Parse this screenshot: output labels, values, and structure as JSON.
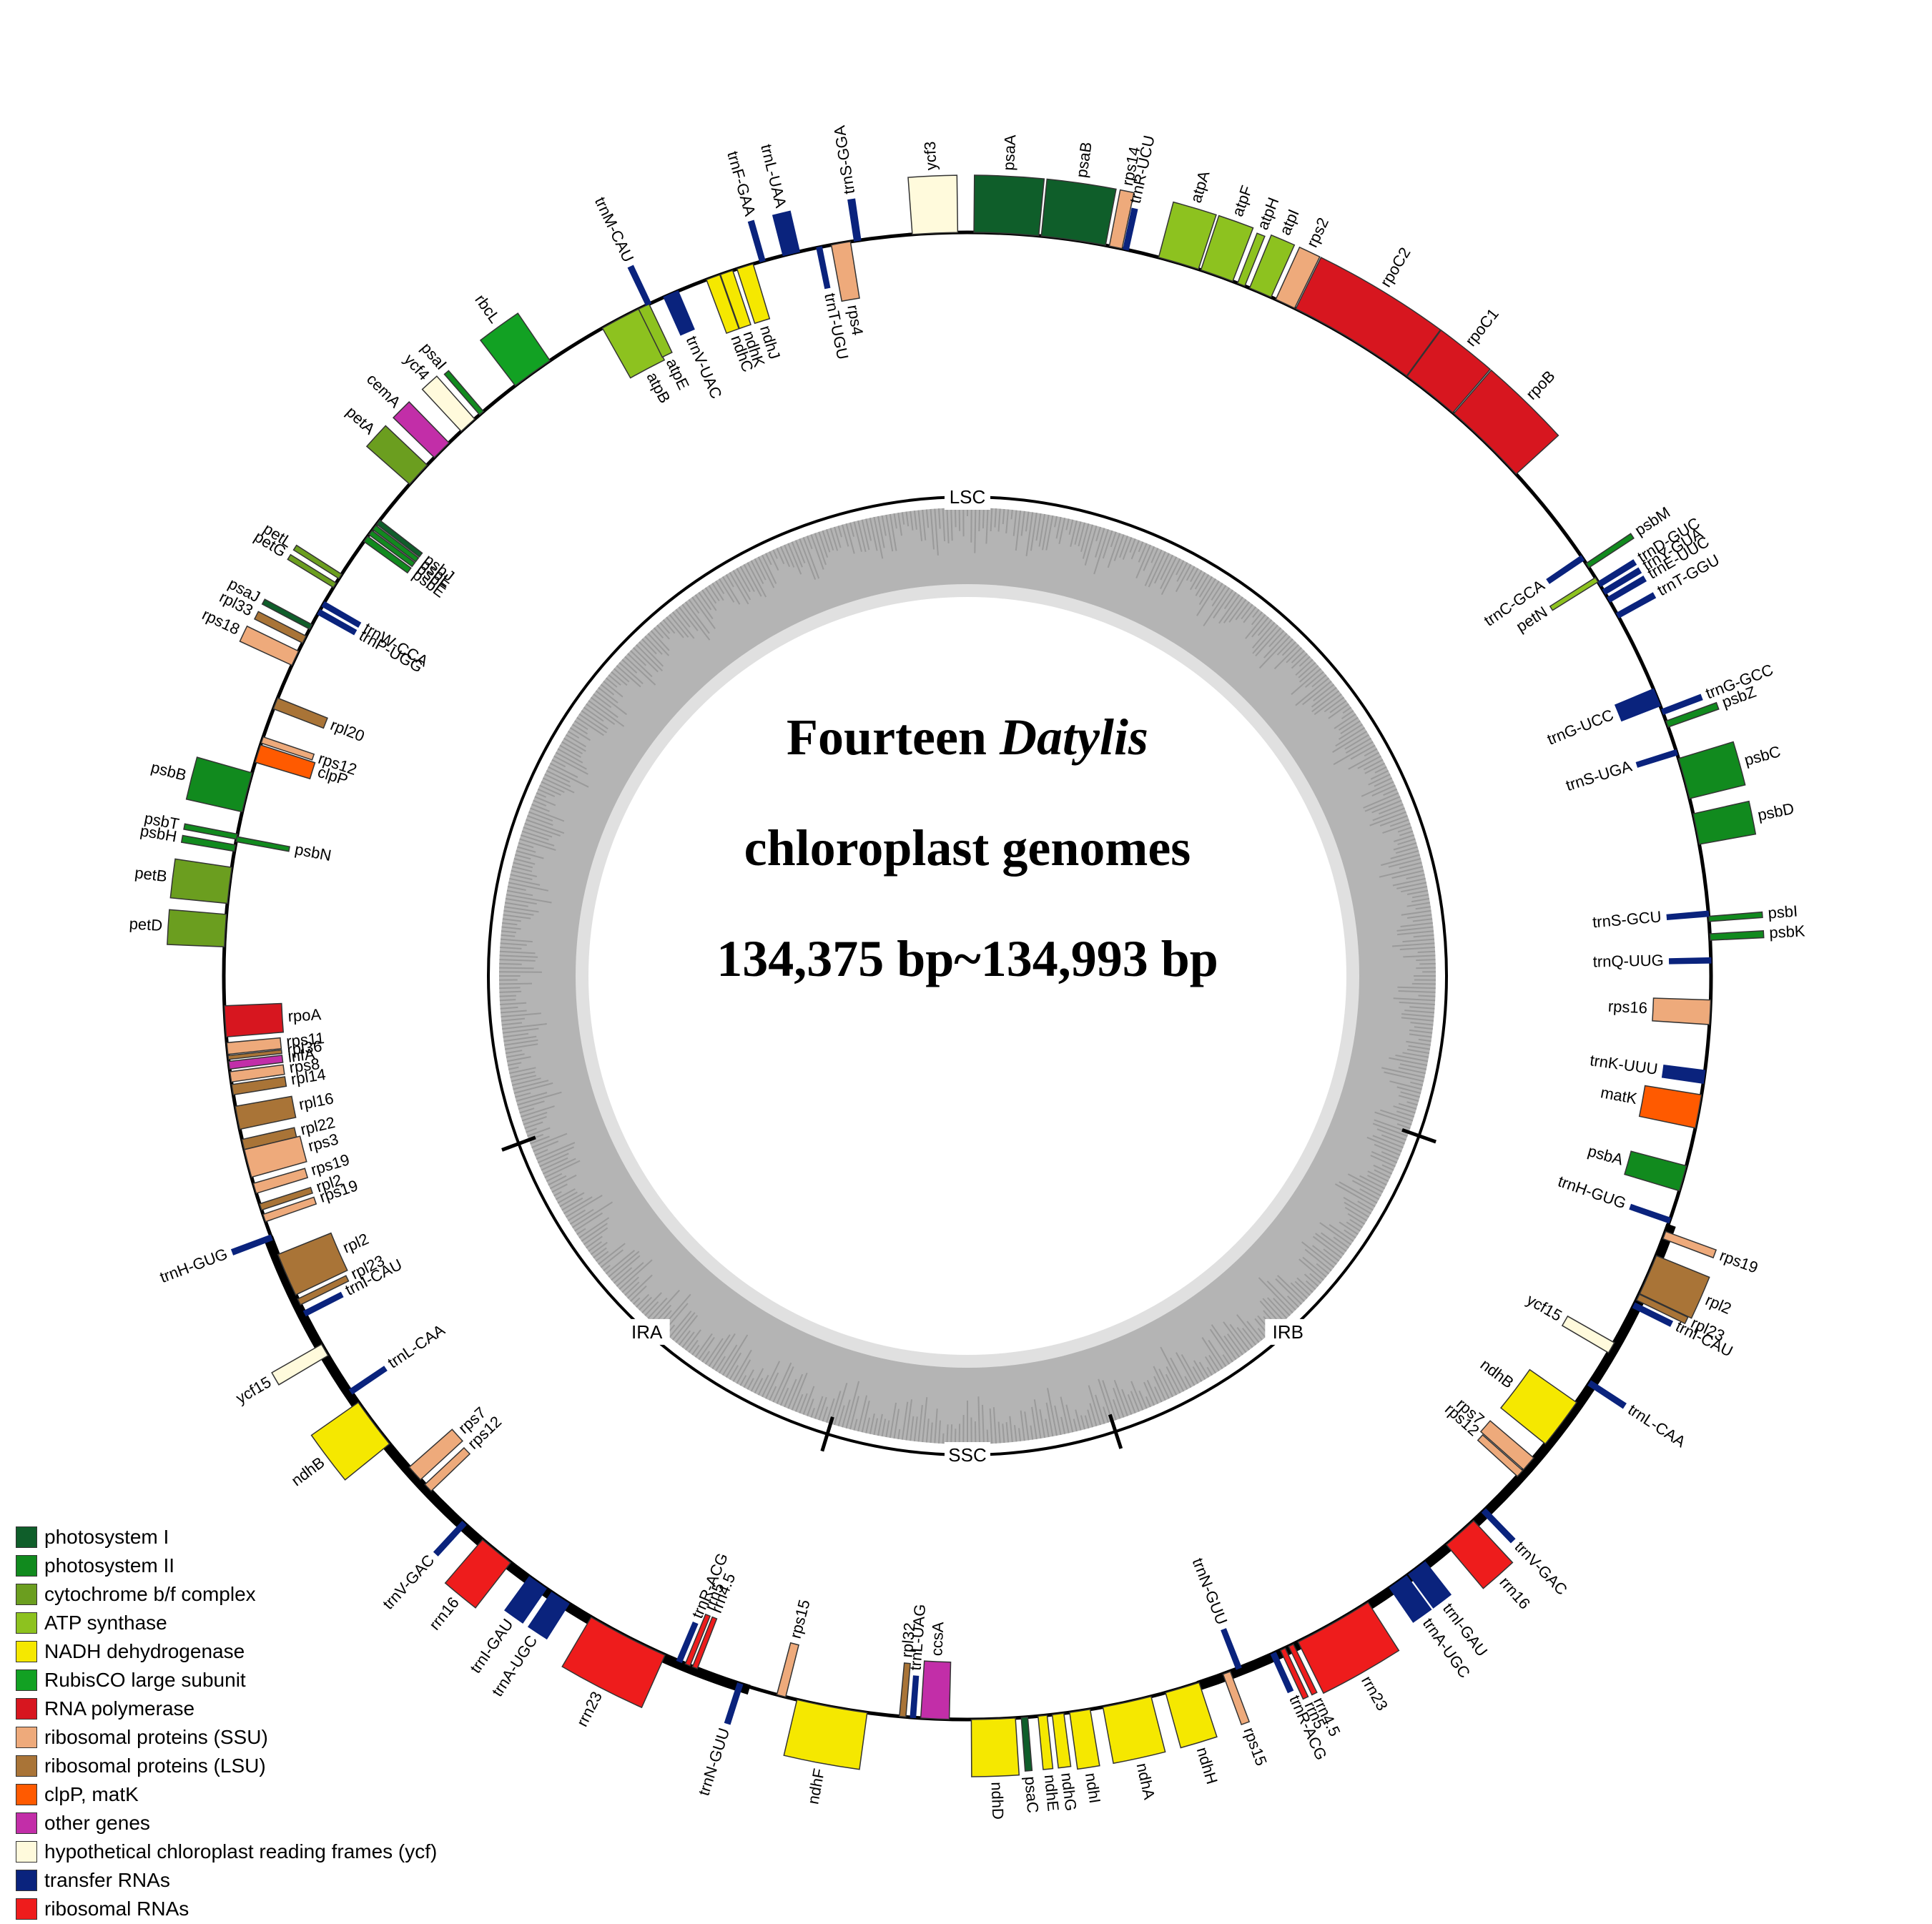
{
  "title": {
    "line1_prefix": "Fourteen ",
    "line1_italic": "Datylis",
    "line2": "chloroplast genomes",
    "line3": "134,375 bp~134,993 bp"
  },
  "regions": [
    "LSC",
    "IRA",
    "SSC",
    "IRB"
  ],
  "categories": {
    "ps1": {
      "label": "photosystem I",
      "color": "#0f5e2a"
    },
    "ps2": {
      "label": "photosystem II",
      "color": "#118a1e"
    },
    "cyt": {
      "label": "cytochrome b/f complex",
      "color": "#6b9e1f"
    },
    "atp": {
      "label": "ATP synthase",
      "color": "#8dc21f"
    },
    "ndh": {
      "label": "NADH dehydrogenase",
      "color": "#f5e800"
    },
    "rbc": {
      "label": "RubisCO large subunit",
      "color": "#12a123"
    },
    "rpo": {
      "label": "RNA polymerase",
      "color": "#d7161f"
    },
    "ssu": {
      "label": "ribosomal proteins (SSU)",
      "color": "#eeaa7b"
    },
    "lsu": {
      "label": "ribosomal proteins (LSU)",
      "color": "#a97437"
    },
    "clp": {
      "label": "clpP, matK",
      "color": "#ff5a00"
    },
    "oth": {
      "label": "other genes",
      "color": "#c22ea8"
    },
    "ycf": {
      "label": "hypothetical chloroplast reading frames (ycf)",
      "color": "#fffadc"
    },
    "trn": {
      "label": "transfer RNAs",
      "color": "#0a237d"
    },
    "rrn": {
      "label": "ribosomal RNAs",
      "color": "#ee1c1c"
    }
  },
  "legend_order": [
    "ps1",
    "ps2",
    "cyt",
    "atp",
    "ndh",
    "rbc",
    "rpo",
    "ssu",
    "lsu",
    "clp",
    "oth",
    "ycf",
    "trn",
    "rrn"
  ],
  "genes": [
    {
      "name": "trnS-GGA",
      "cat": "trn",
      "a": -8.5,
      "w": 0.5,
      "side": "out"
    },
    {
      "name": "ycf3",
      "cat": "ycf",
      "a": -2.5,
      "w": 3.5,
      "side": "out"
    },
    {
      "name": "psaA",
      "cat": "ps1",
      "a": 3.0,
      "w": 5.0,
      "side": "out"
    },
    {
      "name": "psaB",
      "cat": "ps1",
      "a": 8.2,
      "w": 5.0,
      "side": "out"
    },
    {
      "name": "rps14",
      "cat": "ssu",
      "a": 11.5,
      "w": 1.0,
      "side": "out"
    },
    {
      "name": "trnR-UCU",
      "cat": "trn",
      "a": 12.3,
      "w": 0.4,
      "side": "out"
    },
    {
      "name": "atpA",
      "cat": "atp",
      "a": 16.5,
      "w": 3.2,
      "side": "out"
    },
    {
      "name": "atpF",
      "cat": "atp",
      "a": 19.6,
      "w": 2.6,
      "side": "out"
    },
    {
      "name": "atpH",
      "cat": "atp",
      "a": 21.6,
      "w": 0.6,
      "side": "out"
    },
    {
      "name": "atpI",
      "cat": "atp",
      "a": 23.2,
      "w": 1.8,
      "side": "out"
    },
    {
      "name": "rps2",
      "cat": "ssu",
      "a": 25.3,
      "w": 1.6,
      "side": "out"
    },
    {
      "name": "rpoC2",
      "cat": "rpo",
      "a": 31.2,
      "w": 10.0,
      "side": "out"
    },
    {
      "name": "rpoC1",
      "cat": "rpo",
      "a": 38.5,
      "w": 4.5,
      "side": "out"
    },
    {
      "name": "rpoB",
      "cat": "rpo",
      "a": 44.2,
      "w": 6.7,
      "side": "out"
    },
    {
      "name": "psbM",
      "cat": "ps2",
      "a": 56.5,
      "w": 0.4,
      "side": "out"
    },
    {
      "name": "trnD-GUC",
      "cat": "trn",
      "a": 58.2,
      "w": 0.4,
      "side": "out"
    },
    {
      "name": "trnY-GUA",
      "cat": "trn",
      "a": 58.9,
      "w": 0.4,
      "side": "out"
    },
    {
      "name": "trnE-UUC",
      "cat": "trn",
      "a": 59.6,
      "w": 0.4,
      "side": "out"
    },
    {
      "name": "trnT-GGU",
      "cat": "trn",
      "a": 61.0,
      "w": 0.4,
      "side": "out"
    },
    {
      "name": "trnC-GCA",
      "cat": "trn",
      "a": 55.8,
      "w": 0.4,
      "side": "in"
    },
    {
      "name": "petN",
      "cat": "atp",
      "a": 57.8,
      "w": 0.4,
      "side": "in"
    },
    {
      "name": "trnG-GCC",
      "cat": "trn",
      "a": 69.2,
      "w": 0.4,
      "side": "out"
    },
    {
      "name": "psbZ",
      "cat": "ps2",
      "a": 70.2,
      "w": 0.5,
      "side": "out"
    },
    {
      "name": "psbC",
      "cat": "ps2",
      "a": 74.6,
      "w": 3.2,
      "side": "out"
    },
    {
      "name": "psbD",
      "cat": "ps2",
      "a": 78.6,
      "w": 2.4,
      "side": "out"
    },
    {
      "name": "psbI",
      "cat": "ps2",
      "a": 85.6,
      "w": 0.4,
      "side": "out"
    },
    {
      "name": "psbK",
      "cat": "ps2",
      "a": 87.0,
      "w": 0.5,
      "side": "out"
    },
    {
      "name": "trnG-UCC",
      "cat": "trn",
      "a": 68.0,
      "w": 1.4,
      "side": "in"
    },
    {
      "name": "trnS-UGA",
      "cat": "trn",
      "a": 72.5,
      "w": 0.4,
      "side": "in"
    },
    {
      "name": "trnS-GCU",
      "cat": "trn",
      "a": 85.2,
      "w": 0.4,
      "side": "in"
    },
    {
      "name": "trnQ-UUG",
      "cat": "trn",
      "a": 88.8,
      "w": 0.4,
      "side": "in"
    },
    {
      "name": "rps16",
      "cat": "ssu",
      "a": 92.8,
      "w": 1.9,
      "side": "in"
    },
    {
      "name": "trnK-UUU",
      "cat": "trn",
      "a": 97.8,
      "w": 1.0,
      "side": "in"
    },
    {
      "name": "matK",
      "cat": "clp",
      "a": 100.5,
      "w": 2.6,
      "side": "in"
    },
    {
      "name": "psbA",
      "cat": "ps2",
      "a": 105.8,
      "w": 2.0,
      "side": "in"
    },
    {
      "name": "trnH-GUG",
      "cat": "trn",
      "a": 109.2,
      "w": 0.4,
      "side": "in"
    },
    {
      "name": "rps19",
      "cat": "ssu",
      "a": 110.4,
      "w": 0.6,
      "side": "out"
    },
    {
      "name": "rpl2",
      "cat": "lsu",
      "a": 113.7,
      "w": 3.2,
      "side": "out"
    },
    {
      "name": "rpl23",
      "cat": "lsu",
      "a": 115.6,
      "w": 0.5,
      "side": "out"
    },
    {
      "name": "trnI-CAU",
      "cat": "trn",
      "a": 116.3,
      "w": 0.4,
      "side": "out"
    },
    {
      "name": "ycf15",
      "cat": "ycf",
      "a": 120.0,
      "w": 0.9,
      "side": "in"
    },
    {
      "name": "trnL-CAA",
      "cat": "trn",
      "a": 123.2,
      "w": 0.4,
      "side": "out"
    },
    {
      "name": "ndhB",
      "cat": "ndh",
      "a": 127.0,
      "w": 4.0,
      "side": "in"
    },
    {
      "name": "rps7",
      "cat": "ssu",
      "a": 131.0,
      "w": 1.2,
      "side": "in"
    },
    {
      "name": "rps12",
      "cat": "ssu",
      "a": 132.0,
      "w": 0.6,
      "side": "in"
    },
    {
      "name": "trnV-GAC",
      "cat": "trn",
      "a": 136.0,
      "w": 0.4,
      "side": "out"
    },
    {
      "name": "rrn16",
      "cat": "rrn",
      "a": 138.5,
      "w": 2.8,
      "side": "out"
    },
    {
      "name": "trnI-GAU",
      "cat": "trn",
      "a": 142.8,
      "w": 1.6,
      "side": "out"
    },
    {
      "name": "trnA-UGC",
      "cat": "trn",
      "a": 144.6,
      "w": 1.6,
      "side": "out"
    },
    {
      "name": "rrn23",
      "cat": "rrn",
      "a": 150.5,
      "w": 6.2,
      "side": "out"
    },
    {
      "name": "rrn4.5",
      "cat": "rrn",
      "a": 154.2,
      "w": 0.4,
      "side": "out"
    },
    {
      "name": "rrn5",
      "cat": "rrn",
      "a": 154.9,
      "w": 0.4,
      "side": "out"
    },
    {
      "name": "trnR-ACG",
      "cat": "trn",
      "a": 155.7,
      "w": 0.4,
      "side": "out"
    },
    {
      "name": "trnN-GUU",
      "cat": "trn",
      "a": 158.6,
      "w": 0.4,
      "side": "in"
    },
    {
      "name": "rps15",
      "cat": "ssu",
      "a": 159.6,
      "w": 0.6,
      "side": "out"
    },
    {
      "name": "ndhH",
      "cat": "ndh",
      "a": 163.2,
      "w": 2.7,
      "side": "out"
    },
    {
      "name": "ndhA",
      "cat": "ndh",
      "a": 167.6,
      "w": 3.8,
      "side": "out"
    },
    {
      "name": "ndhI",
      "cat": "ndh",
      "a": 171.3,
      "w": 1.6,
      "side": "out"
    },
    {
      "name": "ndhG",
      "cat": "ndh",
      "a": 173.0,
      "w": 0.9,
      "side": "out"
    },
    {
      "name": "ndhE",
      "cat": "ndh",
      "a": 174.2,
      "w": 0.7,
      "side": "out"
    },
    {
      "name": "psaC",
      "cat": "ps1",
      "a": 175.6,
      "w": 0.5,
      "side": "out"
    },
    {
      "name": "ndhD",
      "cat": "ndh",
      "a": 178.0,
      "w": 3.4,
      "side": "out"
    },
    {
      "name": "ccsA",
      "cat": "oth",
      "a": 182.5,
      "w": 2.2,
      "side": "in"
    },
    {
      "name": "trnL-UAG",
      "cat": "trn",
      "a": 184.2,
      "w": 0.4,
      "side": "in"
    },
    {
      "name": "rpl32",
      "cat": "lsu",
      "a": 185.0,
      "w": 0.5,
      "side": "in"
    },
    {
      "name": "ndhF",
      "cat": "ndh",
      "a": 190.5,
      "w": 5.5,
      "side": "out"
    },
    {
      "name": "rps15",
      "cat": "ssu",
      "a": 194.5,
      "w": 0.7,
      "side": "in"
    },
    {
      "name": "trnN-GUU",
      "cat": "trn",
      "a": 197.8,
      "w": 0.4,
      "side": "out"
    },
    {
      "name": "rrn4.5",
      "cat": "rrn",
      "a": 201.5,
      "w": 0.4,
      "side": "in"
    },
    {
      "name": "rrn5",
      "cat": "rrn",
      "a": 202.1,
      "w": 0.4,
      "side": "in"
    },
    {
      "name": "trnR-ACG",
      "cat": "trn",
      "a": 202.8,
      "w": 0.4,
      "side": "in"
    },
    {
      "name": "rrn23",
      "cat": "rrn",
      "a": 207.2,
      "w": 6.4,
      "side": "out"
    },
    {
      "name": "trnA-UGC",
      "cat": "trn",
      "a": 213.2,
      "w": 1.6,
      "side": "out"
    },
    {
      "name": "trnI-GAU",
      "cat": "trn",
      "a": 215.3,
      "w": 1.6,
      "side": "out"
    },
    {
      "name": "rrn16",
      "cat": "rrn",
      "a": 219.3,
      "w": 2.8,
      "side": "out"
    },
    {
      "name": "trnV-GAC",
      "cat": "trn",
      "a": 222.6,
      "w": 0.4,
      "side": "out"
    },
    {
      "name": "rps12",
      "cat": "ssu",
      "a": 226.5,
      "w": 0.7,
      "side": "in"
    },
    {
      "name": "rps7",
      "cat": "ssu",
      "a": 228.0,
      "w": 1.3,
      "side": "in"
    },
    {
      "name": "ndhB",
      "cat": "ndh",
      "a": 233.0,
      "w": 4.0,
      "side": "out"
    },
    {
      "name": "trnL-CAA",
      "cat": "trn",
      "a": 236.0,
      "w": 0.4,
      "side": "in"
    },
    {
      "name": "ycf15",
      "cat": "ycf",
      "a": 239.8,
      "w": 1.0,
      "side": "out"
    },
    {
      "name": "trnI-CAU",
      "cat": "trn",
      "a": 243.0,
      "w": 0.4,
      "side": "in"
    },
    {
      "name": "rpl23",
      "cat": "lsu",
      "a": 244.0,
      "w": 0.5,
      "side": "in"
    },
    {
      "name": "rpl2",
      "cat": "lsu",
      "a": 246.3,
      "w": 3.4,
      "side": "in"
    },
    {
      "name": "trnH-GUG",
      "cat": "trn",
      "a": 249.4,
      "w": 0.4,
      "side": "out"
    },
    {
      "name": "rps19",
      "cat": "ssu",
      "a": 251.0,
      "w": 0.6,
      "side": "in"
    },
    {
      "name": "rpl2",
      "cat": "lsu",
      "a": 251.9,
      "w": 0.5,
      "side": "in"
    },
    {
      "name": "rps3",
      "cat": "ssu",
      "a": 255.4,
      "w": 2.2,
      "side": "in"
    },
    {
      "name": "rpl22",
      "cat": "lsu",
      "a": 256.9,
      "w": 0.8,
      "side": "in"
    },
    {
      "name": "rps19",
      "cat": "ssu",
      "a": 253.4,
      "w": 0.8,
      "side": "in"
    },
    {
      "name": "rpl16",
      "cat": "lsu",
      "a": 259.0,
      "w": 1.8,
      "side": "in"
    },
    {
      "name": "rpl14",
      "cat": "lsu",
      "a": 261.2,
      "w": 0.8,
      "side": "in"
    },
    {
      "name": "rps8",
      "cat": "ssu",
      "a": 262.2,
      "w": 0.8,
      "side": "in"
    },
    {
      "name": "infA",
      "cat": "oth",
      "a": 263.1,
      "w": 0.6,
      "side": "in"
    },
    {
      "name": "rpl36",
      "cat": "lsu",
      "a": 263.7,
      "w": 0.3,
      "side": "in"
    },
    {
      "name": "rps11",
      "cat": "ssu",
      "a": 264.4,
      "w": 0.9,
      "side": "in"
    },
    {
      "name": "rpoA",
      "cat": "rpo",
      "a": 266.5,
      "w": 2.4,
      "side": "in"
    },
    {
      "name": "petD",
      "cat": "cyt",
      "a": 273.5,
      "w": 2.5,
      "side": "out"
    },
    {
      "name": "petB",
      "cat": "cyt",
      "a": 277.0,
      "w": 2.8,
      "side": "out"
    },
    {
      "name": "psbH",
      "cat": "ps2",
      "a": 279.9,
      "w": 0.5,
      "side": "out"
    },
    {
      "name": "psbN",
      "cat": "ps2",
      "a": 280.6,
      "w": 0.4,
      "side": "in"
    },
    {
      "name": "psbT",
      "cat": "ps2",
      "a": 280.8,
      "w": 0.4,
      "side": "out"
    },
    {
      "name": "psbB",
      "cat": "ps2",
      "a": 284.3,
      "w": 3.1,
      "side": "out"
    },
    {
      "name": "clpP",
      "cat": "clp",
      "a": 287.4,
      "w": 1.4,
      "side": "in"
    },
    {
      "name": "rps12",
      "cat": "ssu",
      "a": 288.5,
      "w": 0.5,
      "side": "in"
    },
    {
      "name": "rpl20",
      "cat": "lsu",
      "a": 291.5,
      "w": 0.9,
      "side": "in"
    },
    {
      "name": "rps18",
      "cat": "ssu",
      "a": 295.3,
      "w": 1.2,
      "side": "out"
    },
    {
      "name": "rpl33",
      "cat": "lsu",
      "a": 296.9,
      "w": 0.6,
      "side": "out"
    },
    {
      "name": "psaJ",
      "cat": "ps1",
      "a": 298.0,
      "w": 0.4,
      "side": "out"
    },
    {
      "name": "trnP-UGG",
      "cat": "trn",
      "a": 299.3,
      "w": 0.4,
      "side": "in"
    },
    {
      "name": "trnW-CCA",
      "cat": "trn",
      "a": 300.0,
      "w": 0.4,
      "side": "in"
    },
    {
      "name": "petG",
      "cat": "cyt",
      "a": 301.7,
      "w": 0.4,
      "side": "out"
    },
    {
      "name": "petL",
      "cat": "cyt",
      "a": 302.5,
      "w": 0.4,
      "side": "out"
    },
    {
      "name": "psbE",
      "cat": "ps2",
      "a": 306.0,
      "w": 0.5,
      "side": "in"
    },
    {
      "name": "psbF",
      "cat": "ps2",
      "a": 306.6,
      "w": 0.4,
      "side": "in"
    },
    {
      "name": "psbL",
      "cat": "ps2",
      "a": 307.1,
      "w": 0.4,
      "side": "in"
    },
    {
      "name": "psbJ",
      "cat": "ps1",
      "a": 307.6,
      "w": 0.4,
      "side": "in"
    },
    {
      "name": "petA",
      "cat": "cyt",
      "a": 312.4,
      "w": 2.0,
      "side": "out"
    },
    {
      "name": "cemA",
      "cat": "oth",
      "a": 315.0,
      "w": 1.6,
      "side": "out"
    },
    {
      "name": "ycf4",
      "cat": "ycf",
      "a": 317.8,
      "w": 1.4,
      "side": "out"
    },
    {
      "name": "psaI",
      "cat": "ps2",
      "a": 319.2,
      "w": 0.4,
      "side": "out"
    },
    {
      "name": "rbcL",
      "cat": "rbc",
      "a": 324.2,
      "w": 3.3,
      "side": "out"
    },
    {
      "name": "atpB",
      "cat": "atp",
      "a": 332.2,
      "w": 3.2,
      "side": "in"
    },
    {
      "name": "atpE",
      "cat": "atp",
      "a": 334.2,
      "w": 0.9,
      "side": "in"
    },
    {
      "name": "trnM-CAU",
      "cat": "trn",
      "a": 334.6,
      "w": 0.4,
      "side": "out"
    },
    {
      "name": "trnV-UAC",
      "cat": "trn",
      "a": 336.5,
      "w": 1.2,
      "side": "in"
    },
    {
      "name": "ndhC",
      "cat": "ndh",
      "a": 340.0,
      "w": 1.1,
      "side": "in"
    },
    {
      "name": "ndhK",
      "cat": "ndh",
      "a": 341.1,
      "w": 1.0,
      "side": "in"
    },
    {
      "name": "ndhJ",
      "cat": "ndh",
      "a": 342.6,
      "w": 1.3,
      "side": "in"
    },
    {
      "name": "trnF-GAA",
      "cat": "trn",
      "a": 344.0,
      "w": 0.4,
      "side": "out"
    },
    {
      "name": "trnL-UAA",
      "cat": "trn",
      "a": 346.3,
      "w": 1.3,
      "side": "out"
    },
    {
      "name": "trnT-UGU",
      "cat": "trn",
      "a": 348.5,
      "w": 0.4,
      "side": "in"
    },
    {
      "name": "rps4",
      "cat": "ssu",
      "a": 350.2,
      "w": 1.5,
      "side": "in"
    }
  ]
}
